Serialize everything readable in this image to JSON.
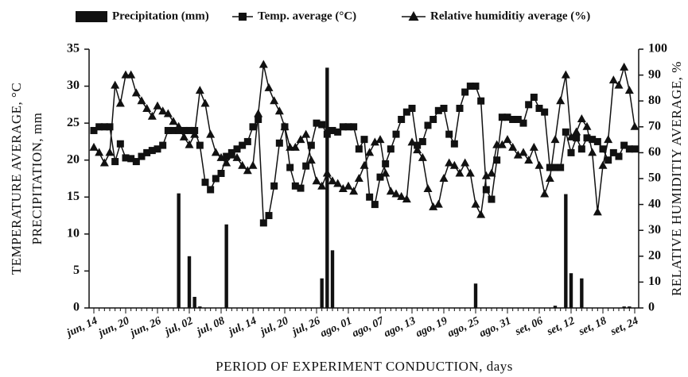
{
  "chart_data": {
    "type": "combo",
    "x_label": "PERIOD OF  EXPERIMENT CONDUCTION, days",
    "y_label": [
      "TEMPERATURE AVERAGE, °C",
      "PRECIPITATION, mm"
    ],
    "y2_label": "RELATIVE HUMIDITIY AVERAGE, %",
    "categories": [
      "jun, 14",
      null,
      null,
      null,
      null,
      null,
      "jun, 20",
      null,
      null,
      null,
      null,
      null,
      "jun, 26",
      null,
      null,
      null,
      null,
      null,
      "jul, 02",
      null,
      null,
      null,
      null,
      null,
      "jul, 08",
      null,
      null,
      null,
      null,
      null,
      "jul, 14",
      null,
      null,
      null,
      null,
      null,
      "jul, 20",
      null,
      null,
      null,
      null,
      null,
      "jul, 26",
      null,
      null,
      null,
      null,
      null,
      "ago, 01",
      null,
      null,
      null,
      null,
      null,
      "ago, 07",
      null,
      null,
      null,
      null,
      null,
      "ago, 13",
      null,
      null,
      null,
      null,
      null,
      "ago, 19",
      null,
      null,
      null,
      null,
      null,
      "ago, 25",
      null,
      null,
      null,
      null,
      null,
      "ago, 31",
      null,
      null,
      null,
      null,
      null,
      "set, 06",
      null,
      null,
      null,
      null,
      null,
      "set, 12",
      null,
      null,
      null,
      null,
      null,
      "set, 18",
      null,
      null,
      null,
      null,
      null,
      "set, 24"
    ],
    "series": [
      {
        "name": "Precipitation (mm)",
        "type": "bar",
        "color": "#111111",
        "axis": "y",
        "values": [
          0,
          0,
          0,
          0,
          0,
          0,
          0,
          0,
          0,
          0,
          0,
          0,
          0,
          0,
          0,
          0,
          15.5,
          0,
          7.0,
          1.5,
          0.2,
          0,
          0,
          0,
          0,
          11.3,
          0,
          0,
          0,
          0,
          0,
          0,
          0,
          0,
          0,
          0,
          0,
          0,
          0,
          0,
          0,
          0,
          0,
          4.0,
          32.5,
          7.8,
          0,
          0,
          0,
          0,
          0,
          0,
          0,
          0,
          0,
          0,
          0,
          0,
          0,
          0,
          0,
          0,
          0,
          0,
          0,
          0,
          0,
          0,
          0,
          0,
          0,
          0,
          3.3,
          0,
          0,
          0,
          0,
          0,
          0,
          0,
          0,
          0,
          0,
          0,
          0,
          0,
          0,
          0.3,
          0,
          15.4,
          4.7,
          0,
          4.0,
          0,
          0,
          0,
          0,
          0,
          0,
          0,
          0.2,
          0.2,
          0
        ]
      },
      {
        "name": "Temp. average (°C)",
        "type": "line",
        "marker": "square",
        "color": "#111111",
        "axis": "y",
        "values": [
          24,
          24.5,
          24.5,
          24.5,
          19.8,
          22.2,
          20.3,
          20.2,
          19.8,
          20.5,
          21,
          21.3,
          21.5,
          22,
          24,
          24,
          24,
          24,
          24,
          24,
          22,
          17,
          16,
          17.5,
          18.2,
          20.5,
          21,
          21.5,
          22,
          22.5,
          24.5,
          25.5,
          11.5,
          12.5,
          16.5,
          22.3,
          24.5,
          19,
          16.5,
          16.2,
          19.2,
          22,
          25,
          24.8,
          23.5,
          24,
          23.8,
          24.5,
          24.5,
          24.5,
          21.5,
          22.8,
          15,
          14,
          17.7,
          19.5,
          21.5,
          23.5,
          25.5,
          26.5,
          27,
          22,
          22.5,
          24.7,
          25.5,
          26.7,
          27,
          23.5,
          22.2,
          27,
          29.2,
          30,
          30,
          28,
          16,
          14.7,
          20,
          25.8,
          25.8,
          25.5,
          25.5,
          25,
          27.5,
          28.5,
          27,
          26.5,
          19,
          19,
          19,
          23.8,
          21,
          23,
          21.5,
          23,
          22.8,
          22.5,
          21.5,
          20,
          21,
          20.5,
          22,
          21.5,
          21.5
        ]
      },
      {
        "name": "Relative humiditiy average (%)",
        "type": "line",
        "marker": "triangle",
        "color": "#111111",
        "axis": "y2",
        "values": [
          62,
          60,
          56,
          60,
          86,
          79,
          90,
          90,
          83,
          80,
          77,
          74,
          78,
          76,
          75,
          72,
          70,
          66,
          63,
          67,
          84,
          79,
          67,
          60,
          58,
          56,
          59,
          58,
          55,
          53,
          55,
          75,
          94,
          85,
          80,
          76,
          70,
          62,
          62,
          65,
          67,
          57,
          49,
          47,
          52,
          49,
          48,
          46,
          47,
          45,
          50,
          55,
          60,
          64,
          65,
          52,
          45,
          44,
          43,
          42,
          64,
          61,
          58,
          46,
          39,
          40,
          50,
          56,
          55,
          52,
          56,
          52,
          40,
          36,
          51,
          52,
          63,
          63,
          65,
          62,
          59,
          60,
          57,
          62,
          55,
          44,
          50,
          65,
          80,
          90,
          66,
          68,
          73,
          70,
          60,
          37,
          55,
          65,
          88,
          86,
          93,
          84,
          70
        ]
      }
    ],
    "ylim": [
      0,
      35
    ],
    "yticks": [
      0,
      5,
      10,
      15,
      20,
      25,
      30,
      35
    ],
    "y2lim": [
      0,
      100
    ],
    "y2ticks": [
      0,
      10,
      20,
      30,
      40,
      50,
      60,
      70,
      80,
      90,
      100
    ]
  }
}
